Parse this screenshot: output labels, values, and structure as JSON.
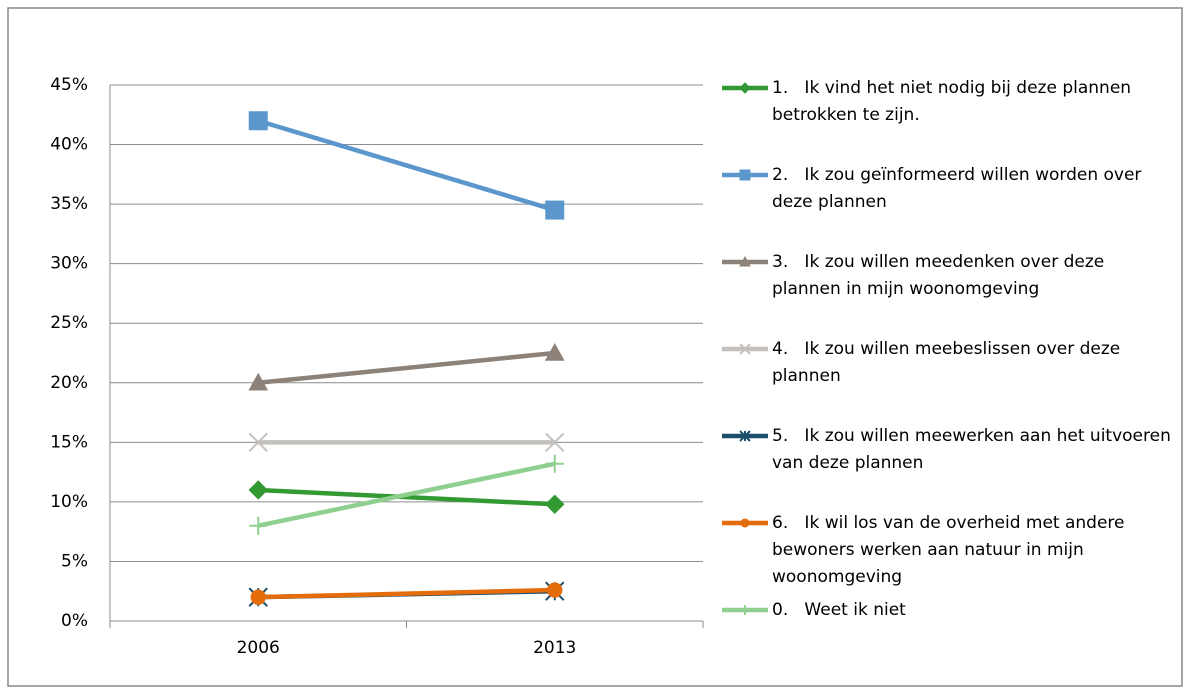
{
  "chart_data": {
    "type": "line",
    "categories": [
      "2006",
      "2013"
    ],
    "ylim": [
      0,
      45
    ],
    "yticks": [
      {
        "value": 0,
        "label": "0%"
      },
      {
        "value": 5,
        "label": "5%"
      },
      {
        "value": 10,
        "label": "10%"
      },
      {
        "value": 15,
        "label": "15%"
      },
      {
        "value": 20,
        "label": "20%"
      },
      {
        "value": 25,
        "label": "25%"
      },
      {
        "value": 30,
        "label": "30%"
      },
      {
        "value": 35,
        "label": "35%"
      },
      {
        "value": 40,
        "label": "40%"
      },
      {
        "value": 45,
        "label": "45%"
      }
    ],
    "grid": true,
    "legend": "right",
    "series": [
      {
        "name": "1.   Ik vind het niet nodig bij deze plannen betrokken te zijn.",
        "color": "#339933",
        "marker": "diamond",
        "values": [
          11,
          9.8
        ]
      },
      {
        "name": "2.   Ik zou geïnformeerd willen worden over deze plannen",
        "color": "#5b97cc",
        "marker": "square",
        "values": [
          42,
          34.5
        ]
      },
      {
        "name": "3.   Ik zou willen meedenken over deze plannen in mijn woonomgeving",
        "color": "#8c8279",
        "marker": "triangle",
        "values": [
          20,
          22.5
        ]
      },
      {
        "name": "4.   Ik zou willen meebeslissen over deze plannen",
        "color": "#c3c0bd",
        "marker": "x",
        "values": [
          15,
          15
        ]
      },
      {
        "name": "5.   Ik zou willen meewerken aan het uitvoeren van deze plannen",
        "color": "#1b4e6b",
        "marker": "star",
        "values": [
          2,
          2.5
        ]
      },
      {
        "name": "6.   Ik wil los van de overheid met andere bewoners werken aan natuur in mijn woonomgeving",
        "color": "#e46c0a",
        "marker": "circle",
        "values": [
          2,
          2.6
        ]
      },
      {
        "name": "0.   Weet ik niet",
        "color": "#8fcf8f",
        "marker": "plus",
        "values": [
          8,
          13.2
        ]
      }
    ]
  }
}
